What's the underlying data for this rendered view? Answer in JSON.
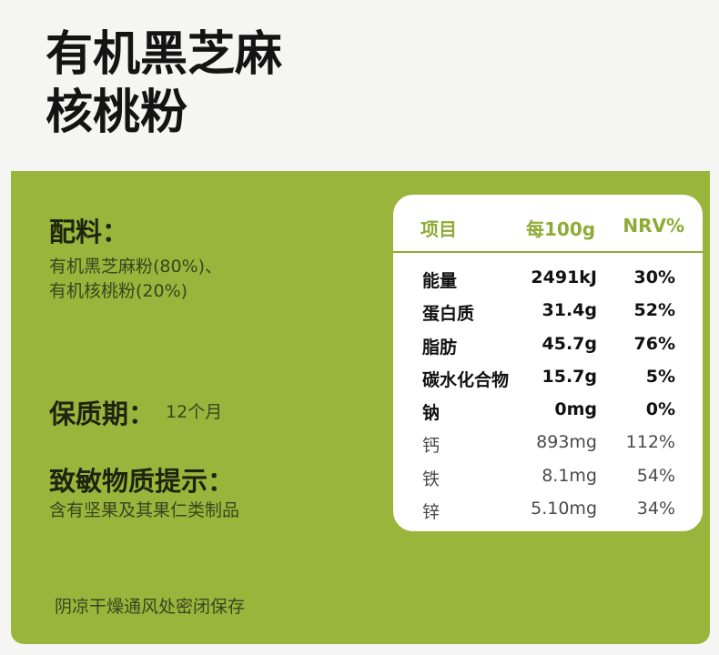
{
  "title": {
    "line1": "有机黑芝麻",
    "line2": "核桃粉"
  },
  "ingredients": {
    "label": "配料：",
    "line1": "有机黑芝麻粉(80%)、",
    "line2": "有机核桃粉(20%)"
  },
  "shelf_life": {
    "label": "保质期：",
    "value": "12个月"
  },
  "allergen": {
    "label": "致敏物质提示：",
    "value": "含有坚果及其果仁类制品"
  },
  "storage": "阴凉干燥通风处密闭保存",
  "nutrition": {
    "headers": {
      "item": "项目",
      "per100g": "每100g",
      "nrv": "NRV%"
    },
    "rows": [
      {
        "name": "能量",
        "value": "2491kJ",
        "nrv": "30%"
      },
      {
        "name": "蛋白质",
        "value": "31.4g",
        "nrv": "52%"
      },
      {
        "name": "脂肪",
        "value": "45.7g",
        "nrv": "76%"
      },
      {
        "name": "碳水化合物",
        "value": "15.7g",
        "nrv": "5%"
      },
      {
        "name": "钠",
        "value": "0mg",
        "nrv": "0%"
      },
      {
        "name": "钙",
        "value": "893mg",
        "nrv": "112%"
      },
      {
        "name": "铁",
        "value": "8.1mg",
        "nrv": "54%"
      },
      {
        "name": "锌",
        "value": "5.10mg",
        "nrv": "34%"
      }
    ]
  },
  "colors": {
    "panel": "#9ab53b",
    "header_text": "#8eab34",
    "title": "#141414"
  }
}
